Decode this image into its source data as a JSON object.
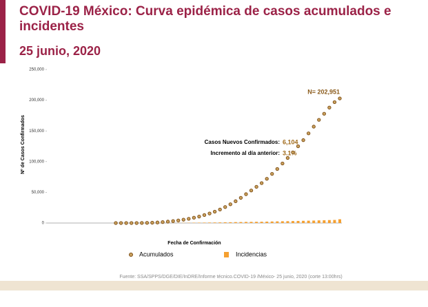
{
  "chart_data": {
    "type": "line",
    "title": "COVID-19 México: Curva epidémica de casos acumulados e incidentes",
    "subtitle": "25 junio, 2020",
    "y_label": "Nº de Casos Confirmados",
    "x_label": "Fecha de Confirmación",
    "source": "Fuente: SSA/SPPS/DGE/DIE/InDRE/Informe técnico.COVID-19 /México- 25 junio, 2020 (corte 13:00hrs)",
    "annotations": {
      "total": "N= 202,951",
      "new_label": "Casos Nuevos Confirmados:",
      "new_value": "6,104",
      "increase_label": "Incremento al día anterior:",
      "increase_value": "3.1%"
    },
    "ylim": [
      0,
      250000
    ],
    "yticks": [
      {
        "value": 0,
        "label": "0"
      },
      {
        "value": 50000,
        "label": "50,000"
      },
      {
        "value": 100000,
        "label": "100,000"
      },
      {
        "value": 150000,
        "label": "150,000"
      },
      {
        "value": 200000,
        "label": "200,000"
      },
      {
        "value": 250000,
        "label": "250,000"
      }
    ],
    "series": [
      {
        "name": "Acumulados",
        "color": "#c9a15e",
        "stroke": "#7a4a12",
        "values": [
          0,
          0,
          5,
          10,
          30,
          100,
          250,
          500,
          900,
          1500,
          2300,
          3200,
          4200,
          5400,
          6900,
          8700,
          10500,
          13000,
          15500,
          18500,
          22000,
          26000,
          30500,
          35500,
          41000,
          47000,
          53000,
          59000,
          65000,
          72000,
          80000,
          88000,
          97000,
          106000,
          115000,
          125000,
          135000,
          146000,
          157000,
          168000,
          178000,
          188000,
          196847,
          202951
        ]
      },
      {
        "name": "Incidencias",
        "color": "#f5a030",
        "values": [
          0,
          0,
          1,
          2,
          5,
          15,
          30,
          60,
          100,
          150,
          200,
          250,
          300,
          350,
          450,
          550,
          600,
          700,
          800,
          900,
          1000,
          1200,
          1300,
          1500,
          1600,
          1800,
          1900,
          2000,
          2100,
          2300,
          2500,
          2700,
          2900,
          3000,
          3200,
          3400,
          3600,
          3800,
          4000,
          4300,
          4500,
          4800,
          5000,
          6104
        ]
      }
    ]
  }
}
